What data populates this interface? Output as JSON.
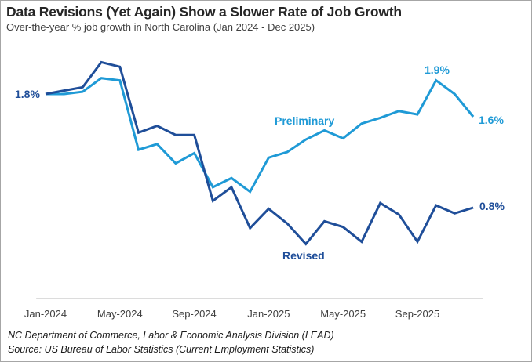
{
  "chart_data": {
    "type": "line",
    "title": "Data Revisions (Yet Again) Show a Slower Rate of Job Growth",
    "subtitle": "Over-the-year  % job growth in North Carolina (Jan 2024 - Dec 2025)",
    "xlabel": "",
    "ylabel": "",
    "ylim": [
      0,
      2.2
    ],
    "grid": false,
    "x": [
      "Jan-2024",
      "Feb-2024",
      "Mar-2024",
      "Apr-2024",
      "May-2024",
      "Jun-2024",
      "Jul-2024",
      "Aug-2024",
      "Sep-2024",
      "Oct-2024",
      "Nov-2024",
      "Dec-2024",
      "Jan-2025",
      "Feb-2025",
      "Mar-2025",
      "Apr-2025",
      "May-2025",
      "Jun-2025",
      "Jul-2025",
      "Aug-2025",
      "Sep-2025",
      "Oct-2025",
      "Nov-2025",
      "Dec-2025"
    ],
    "tick_labels": [
      "Jan-2024",
      "May-2024",
      "Sep-2024",
      "Jan-2025",
      "May-2025",
      "Sep-2025"
    ],
    "series": [
      {
        "name": "Preliminary",
        "color": "#1f9ad6",
        "values": [
          1.8,
          1.8,
          1.82,
          1.94,
          1.92,
          1.31,
          1.36,
          1.19,
          1.28,
          0.98,
          1.06,
          0.94,
          1.24,
          1.29,
          1.4,
          1.48,
          1.41,
          1.54,
          1.59,
          1.65,
          1.62,
          1.92,
          1.8,
          1.6
        ]
      },
      {
        "name": "Revised",
        "color": "#1f4e99",
        "values": [
          1.8,
          1.83,
          1.86,
          2.08,
          2.04,
          1.46,
          1.52,
          1.44,
          1.44,
          0.86,
          0.98,
          0.62,
          0.79,
          0.66,
          0.48,
          0.68,
          0.63,
          0.5,
          0.84,
          0.74,
          0.5,
          0.82,
          0.75,
          0.8
        ]
      }
    ],
    "annotations": {
      "start": "1.8%",
      "preliminary_peak": "1.9%",
      "preliminary_end": "1.6%",
      "revised_end": "0.8%"
    }
  },
  "footer": {
    "line1": "NC Department of Commerce, Labor & Economic Analysis Division (LEAD)",
    "line2": "Source: US Bureau of Labor Statistics (Current Employment Statistics)"
  }
}
